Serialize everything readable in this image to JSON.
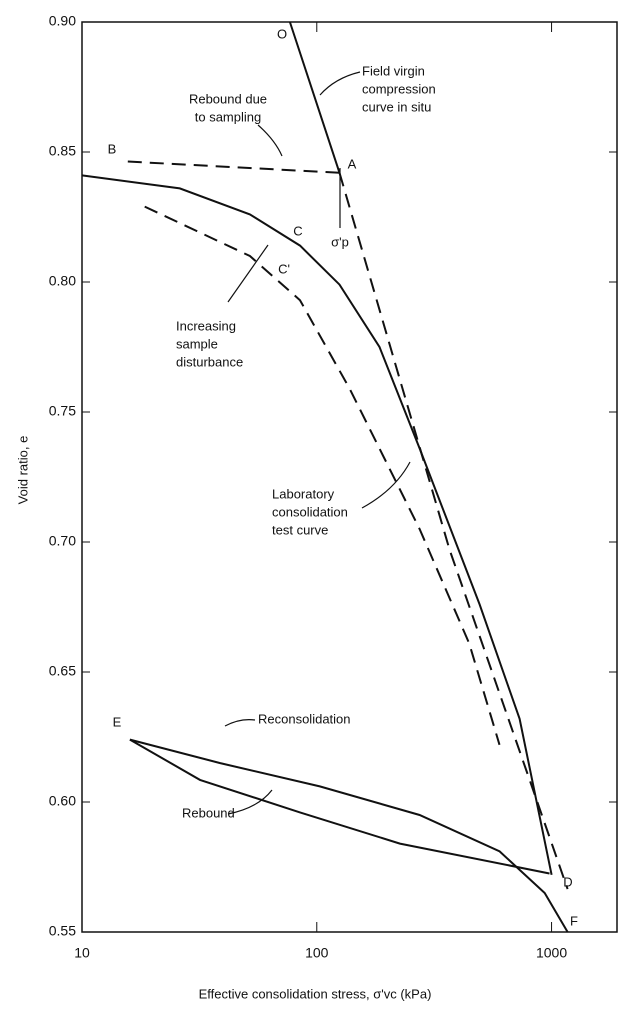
{
  "chart_data": {
    "type": "line",
    "x_label": "Effective consolidation stress, σ'vc (kPa)",
    "y_label": "Void ratio, e",
    "xscale": "log",
    "xlim": [
      10,
      1900
    ],
    "ylim": [
      0.55,
      0.9
    ],
    "xticks": [
      10,
      100,
      1000
    ],
    "yticks": [
      0.55,
      {
        "value": 0.6,
        "label": "0.60"
      },
      0.65,
      {
        "value": 0.7,
        "label": "0.70"
      },
      0.75,
      {
        "value": 0.8,
        "label": "0.80"
      },
      0.85,
      {
        "value": 0.9,
        "label": "0.90"
      }
    ],
    "series": [
      {
        "color": "#111111",
        "dash": "solid",
        "x": [
          76.8,
          125
        ],
        "values": [
          0.9,
          0.842
        ]
      },
      {
        "color": "#111111",
        "dash": "dashed",
        "x": [
          125,
          14.5
        ],
        "values": [
          0.842,
          0.8465
        ]
      },
      {
        "color": "#111111",
        "dash": "solid",
        "x": [
          10,
          26.1,
          51.9,
          84.8,
          125,
          185,
          274,
          494,
          731,
          1000
        ],
        "values": [
          0.841,
          0.836,
          0.826,
          0.814,
          0.799,
          0.775,
          0.736,
          0.676,
          0.632,
          0.572
        ]
      },
      {
        "color": "#111111",
        "dash": "dashed",
        "x": [
          18.5,
          51.9,
          84.8,
          138,
          274,
          446,
          600
        ],
        "values": [
          0.829,
          0.81,
          0.793,
          0.759,
          0.705,
          0.661,
          0.622
        ]
      },
      {
        "color": "#111111",
        "dash": "dashed",
        "x": [
          125,
          368,
          1170
        ],
        "values": [
          0.842,
          0.697,
          0.5665
        ]
      },
      {
        "color": "#111111",
        "dash": "solid",
        "x": [
          16,
          38.6,
          103,
          274,
          601,
          935,
          1170
        ],
        "values": [
          0.624,
          0.615,
          0.606,
          0.595,
          0.581,
          0.565,
          0.55
        ]
      },
      {
        "color": "#111111",
        "dash": "solid",
        "x": [
          980,
          226,
          84.8,
          31.8,
          16
        ],
        "values": [
          0.5725,
          0.584,
          0.596,
          0.6085,
          0.624
        ]
      }
    ],
    "point_labels": [
      "O",
      "A",
      "B",
      "C",
      "C'",
      "D",
      "E",
      "F",
      "σ'p"
    ],
    "annotations": [
      [
        "Field virgin",
        "compression",
        "curve in situ"
      ],
      [
        "Rebound due",
        "to sampling"
      ],
      [
        "Increasing",
        "sample",
        "disturbance"
      ],
      [
        "Laboratory",
        "consolidation",
        "test curve"
      ],
      [
        "Reconsolidation"
      ],
      [
        "Rebound"
      ]
    ]
  }
}
